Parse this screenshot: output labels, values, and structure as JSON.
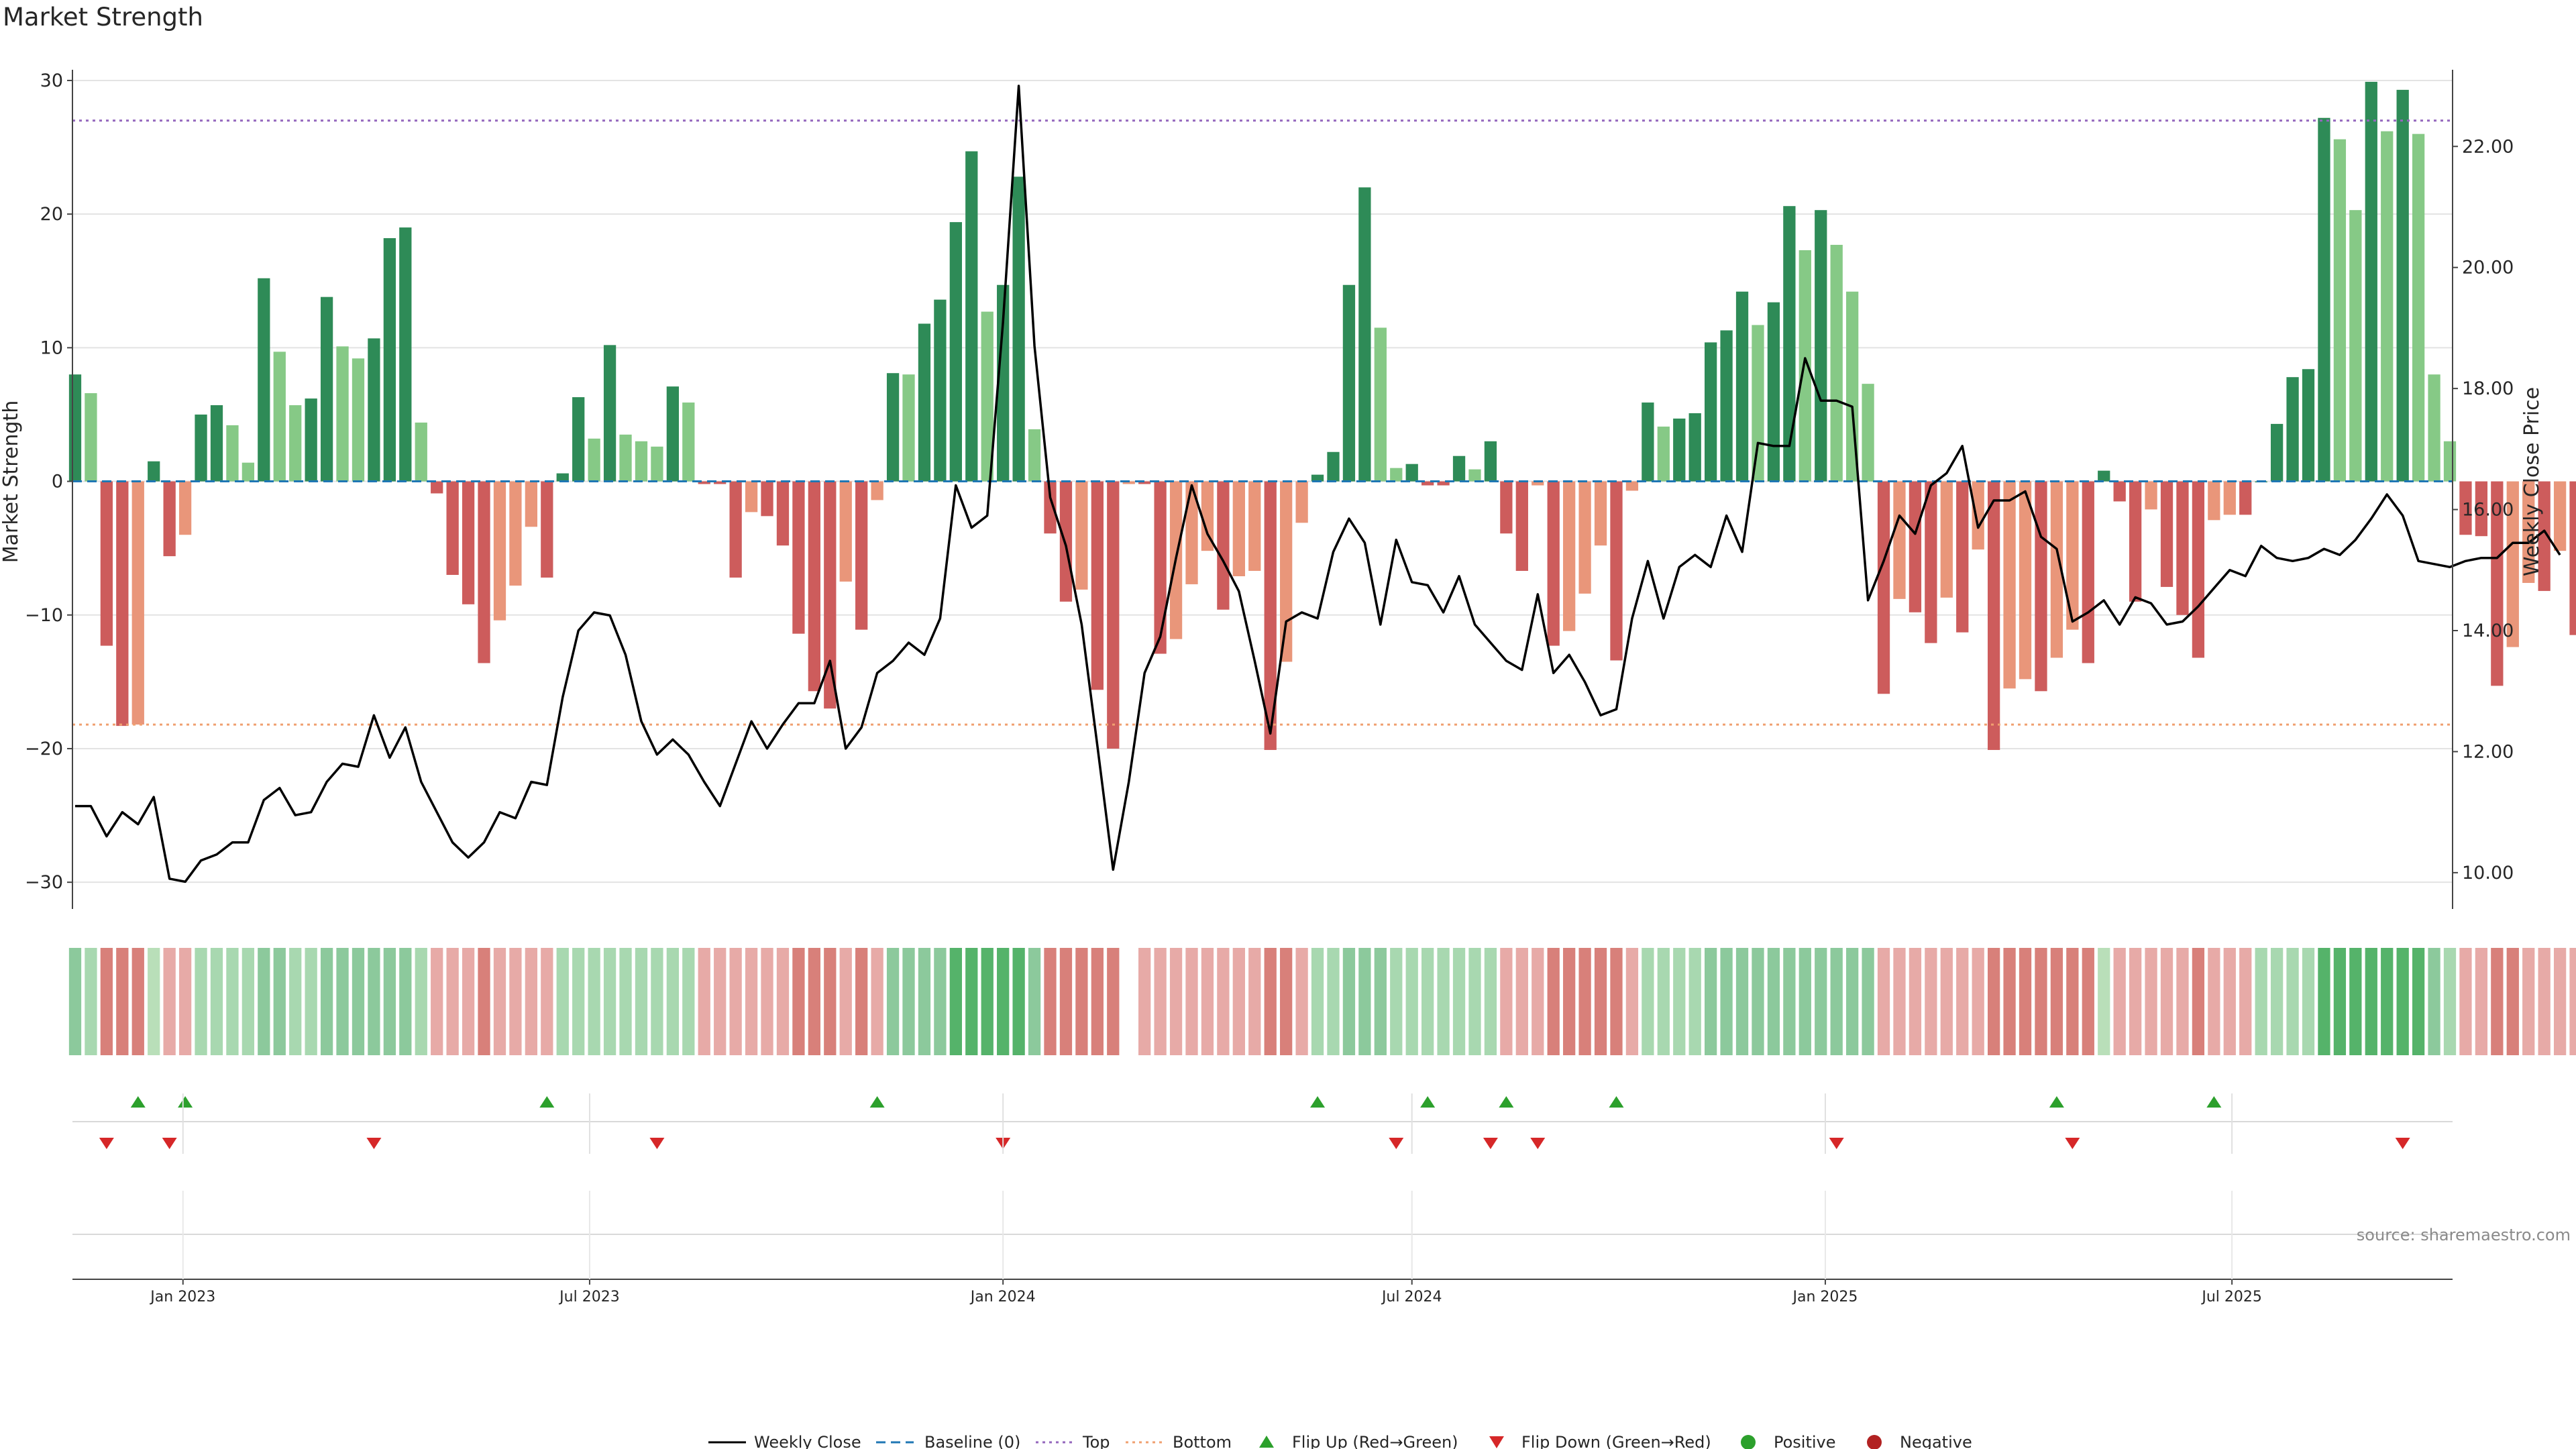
{
  "title": "Market Strength",
  "source": "source: sharemaestro.com",
  "colors": {
    "pos_strong": "#2e8b57",
    "pos_mid": "#5fad73",
    "pos_light": "#86c986",
    "neg_strong": "#cd5c5c",
    "neg_light": "#e9967a",
    "line": "#000000",
    "top": "#9467bd",
    "bottom": "#f0a070",
    "baseline": "#1f77b4",
    "flip_up": "#2ca02c",
    "flip_down": "#d62728",
    "positive": "#2ca02c",
    "negative": "#b22222"
  },
  "chart_data": {
    "type": "bar",
    "title": "Market Strength",
    "ylabel": "Market Strength",
    "y2label": "Weekly Close Price",
    "ylim": [
      -32,
      30.5
    ],
    "y2lim": [
      9.4,
      23.2
    ],
    "yticks": [
      -30,
      -20,
      -10,
      0,
      10,
      20,
      30
    ],
    "yticklabels": [
      "−30",
      "−20",
      "−10",
      "0",
      "10",
      "20",
      "30"
    ],
    "y2ticks": [
      10,
      12,
      14,
      16,
      18,
      20,
      22
    ],
    "y2ticklabels": [
      "10.00",
      "12.00",
      "14.00",
      "16.00",
      "18.00",
      "20.00",
      "22.00"
    ],
    "top_level": 27,
    "bottom_level": -18.2,
    "x_start": "2022-11-14",
    "x_end": "2025-10-06",
    "xtick_labels": [
      "Jan 2023",
      "Jul 2023",
      "Jan 2024",
      "Jul 2024",
      "Jan 2025",
      "Jul 2025"
    ],
    "xtick_dates": [
      "2023-01-01",
      "2023-07-01",
      "2024-01-01",
      "2024-07-01",
      "2025-01-01",
      "2025-07-01"
    ],
    "strength": [
      8,
      6.6,
      -12.3,
      -18.3,
      -18.2,
      1.5,
      -5.6,
      -4,
      5,
      5.7,
      4.2,
      1.4,
      15.2,
      9.7,
      5.7,
      6.2,
      13.8,
      10.1,
      9.2,
      10.7,
      18.2,
      19,
      4.4,
      -0.9,
      -7,
      -9.2,
      -13.6,
      -10.4,
      -7.8,
      -3.4,
      -7.2,
      0.6,
      6.3,
      3.2,
      10.2,
      3.5,
      3,
      2.6,
      7.1,
      5.9,
      -0.2,
      -0.2,
      -7.2,
      -2.3,
      -2.6,
      -4.8,
      -11.4,
      -15.7,
      -17,
      -7.5,
      -11.1,
      -1.4,
      8.1,
      8,
      11.8,
      13.6,
      19.4,
      24.7,
      12.7,
      14.7,
      22.8,
      3.9,
      -3.9,
      -9,
      -8.1,
      -15.6,
      -20,
      -0.2,
      -0.2,
      -12.9,
      -11.8,
      -7.7,
      -5.2,
      -9.6,
      -7.1,
      -6.7,
      -20.1,
      -13.5,
      -3.1,
      0.5,
      2.2,
      14.7,
      22,
      11.5,
      1,
      1.3,
      -0.3,
      -0.3,
      1.9,
      0.9,
      3,
      -3.9,
      -6.7,
      -0.3,
      -12.3,
      -11.2,
      -8.4,
      -4.8,
      -13.4,
      -0.7,
      5.9,
      4.1,
      4.7,
      5.1,
      10.4,
      11.3,
      14.2,
      11.7,
      13.4,
      20.6,
      17.3,
      20.3,
      17.7,
      14.2,
      7.3,
      -15.9,
      -8.8,
      -9.8,
      -12.1,
      -8.7,
      -11.3,
      -5.1,
      -20.1,
      -15.5,
      -14.8,
      -15.7,
      -13.2,
      -11.1,
      -13.6,
      0.8,
      -1.5,
      -9,
      -2.1,
      -7.9,
      -10,
      -13.2,
      -2.9,
      -2.5,
      -2.5,
      0,
      4.3,
      7.8,
      8.4,
      27.2,
      25.6,
      20.3,
      29.9,
      26.2,
      29.3,
      26,
      8,
      3,
      -4,
      -4.1,
      -15.3,
      -12.4,
      -7.6,
      -8.2,
      -5.2,
      -11.5
    ],
    "close": [
      11.1,
      11.1,
      10.6,
      11,
      10.8,
      11.25,
      9.9,
      9.85,
      10.2,
      10.3,
      10.5,
      10.5,
      11.2,
      11.4,
      10.95,
      11,
      11.5,
      11.8,
      11.75,
      12.6,
      11.9,
      12.4,
      11.5,
      11,
      10.5,
      10.25,
      10.5,
      11,
      10.9,
      11.5,
      11.45,
      12.9,
      14,
      14.3,
      14.25,
      13.6,
      12.5,
      11.95,
      12.2,
      11.95,
      11.5,
      11.1,
      11.8,
      12.5,
      12.05,
      12.45,
      12.8,
      12.8,
      13.5,
      12.05,
      12.4,
      13.3,
      13.5,
      13.8,
      13.6,
      14.2,
      16.4,
      15.7,
      15.9,
      19.1,
      23,
      18.7,
      16.2,
      15.4,
      14.1,
      12.1,
      10.05,
      11.5,
      13.3,
      13.9,
      15.2,
      16.4,
      15.6,
      15.15,
      14.65,
      13.5,
      12.3,
      14.15,
      14.3,
      14.2,
      15.3,
      15.85,
      15.45,
      14.1,
      15.5,
      14.8,
      14.75,
      14.3,
      14.9,
      14.1,
      13.8,
      13.5,
      13.35,
      14.6,
      13.3,
      13.6,
      13.15,
      12.6,
      12.7,
      14.2,
      15.15,
      14.2,
      15.05,
      15.25,
      15.05,
      15.9,
      15.3,
      17.1,
      17.05,
      17.05,
      18.5,
      17.8,
      17.8,
      17.7,
      14.5,
      15.15,
      15.9,
      15.6,
      16.4,
      16.6,
      17.05,
      15.7,
      16.15,
      16.15,
      16.3,
      15.55,
      15.35,
      14.15,
      14.3,
      14.5,
      14.1,
      14.55,
      14.45,
      14.1,
      14.15,
      14.4,
      14.7,
      15,
      14.9,
      15.4,
      15.2,
      15.15,
      15.2,
      15.35,
      15.25,
      15.5,
      15.85,
      16.25,
      15.9,
      15.15,
      15.1,
      15.05,
      15.15,
      15.2,
      15.2,
      15.45,
      15.45,
      15.65,
      15.25
    ],
    "trend_strips": [
      2,
      1,
      4,
      4,
      4,
      0,
      3,
      3,
      1,
      1,
      1,
      1,
      2,
      2,
      1,
      1,
      2,
      2,
      2,
      2,
      2,
      2,
      1,
      3,
      3,
      3,
      4,
      3,
      3,
      3,
      3,
      1,
      1,
      1,
      1,
      1,
      1,
      1,
      1,
      1,
      3,
      3,
      3,
      3,
      3,
      3,
      4,
      4,
      4,
      3,
      4,
      3,
      2,
      2,
      2,
      2,
      5,
      5,
      5,
      5,
      5,
      2,
      4,
      4,
      4,
      4,
      4,
      -1,
      3,
      3,
      3,
      3,
      3,
      3,
      3,
      3,
      4,
      4,
      3,
      1,
      1,
      2,
      2,
      2,
      1,
      1,
      1,
      1,
      1,
      1,
      1,
      3,
      3,
      3,
      4,
      4,
      4,
      4,
      4,
      3,
      1,
      1,
      1,
      1,
      2,
      2,
      2,
      2,
      2,
      2,
      2,
      2,
      2,
      2,
      2,
      3,
      3,
      3,
      3,
      3,
      3,
      3,
      4,
      4,
      4,
      4,
      4,
      4,
      4,
      0,
      3,
      3,
      3,
      3,
      3,
      4,
      3,
      3,
      3,
      1,
      1,
      1,
      1,
      5,
      5,
      5,
      5,
      5,
      5,
      5,
      2,
      1,
      3,
      3,
      4,
      4,
      3,
      3,
      3,
      3
    ],
    "flip_up_dates": [
      "2022-12-12",
      "2023-01-02",
      "2023-06-12",
      "2023-11-06",
      "2024-05-20",
      "2024-07-08",
      "2024-08-12",
      "2024-09-30",
      "2025-04-14",
      "2025-06-23"
    ],
    "flip_down_dates": [
      "2022-11-28",
      "2022-12-26",
      "2023-03-27",
      "2023-07-31",
      "2024-01-01",
      "2024-06-24",
      "2024-08-05",
      "2024-08-26",
      "2025-01-06",
      "2025-04-21",
      "2025-09-15"
    ],
    "legend": [
      "Weekly Close",
      "Baseline (0)",
      "Top",
      "Bottom",
      "Flip Up (Red→Green)",
      "Flip Down (Green→Red)",
      "Positive",
      "Negative"
    ]
  }
}
